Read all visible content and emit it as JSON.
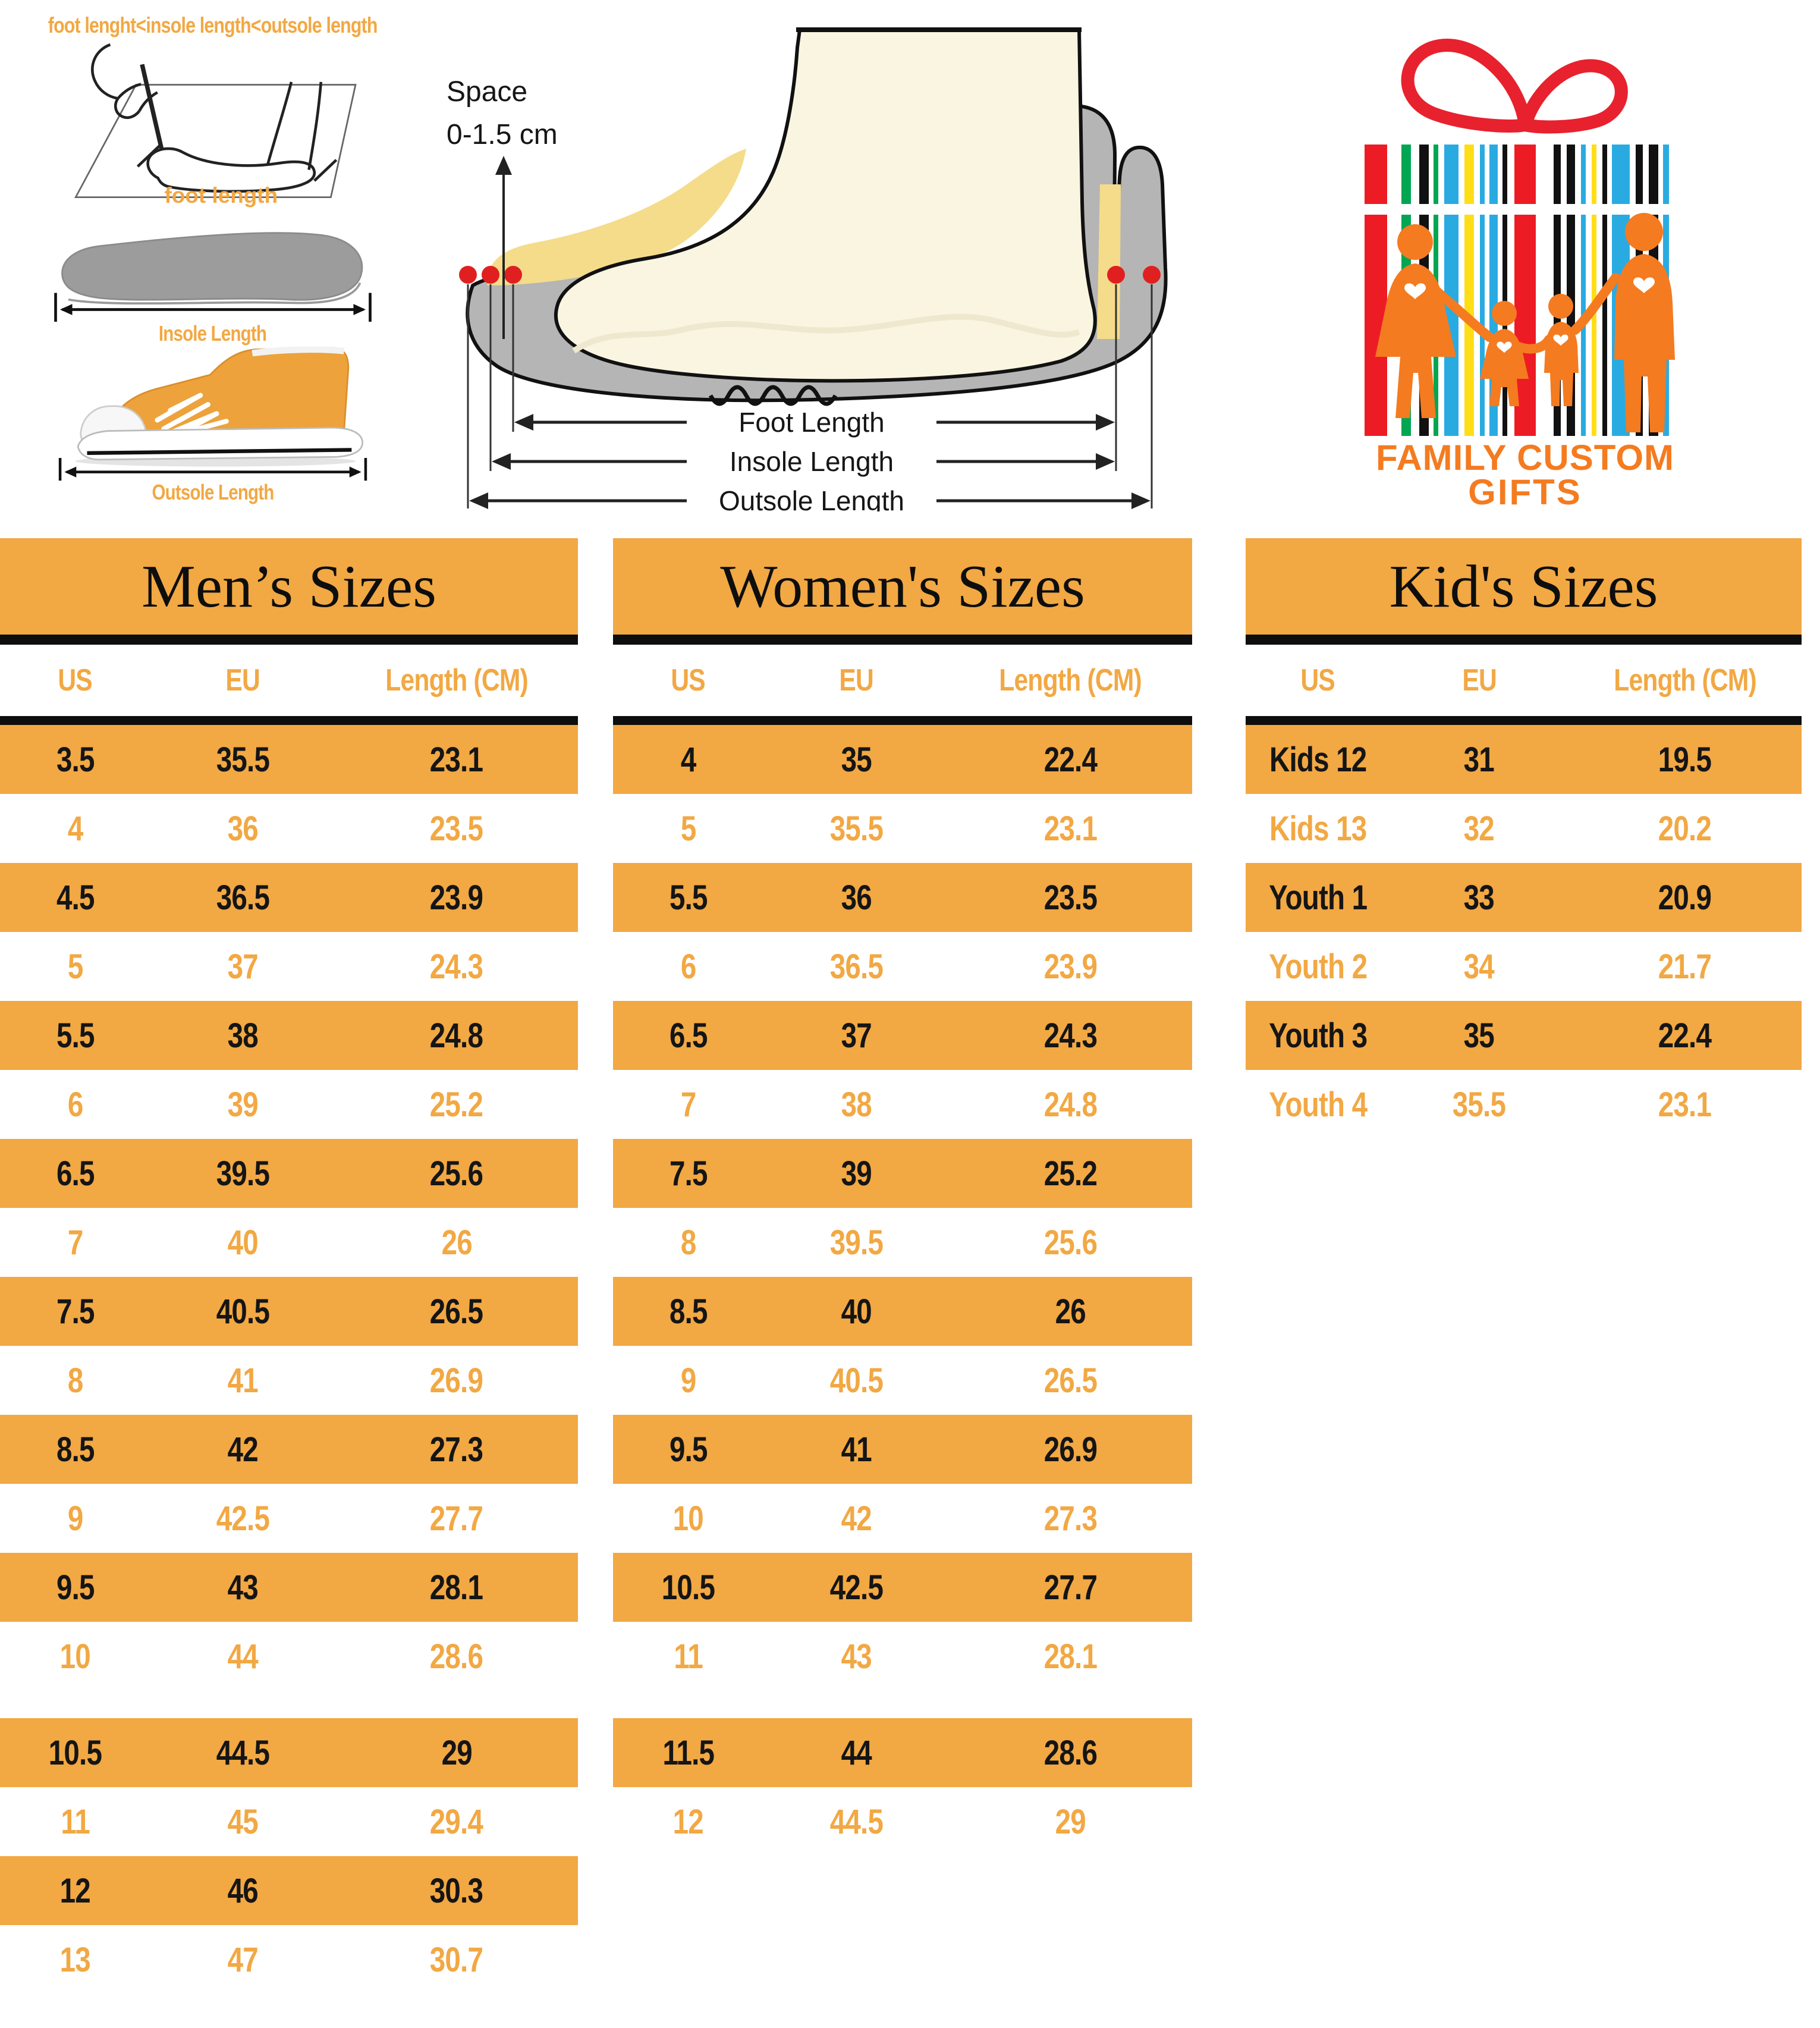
{
  "colors": {
    "table_orange": "#F2A843",
    "bar_black": "#0e0e0e",
    "logo_orange": "#F47B20",
    "logo_red": "#E8212E",
    "stripe_red": "#ED1C24",
    "stripe_green": "#00A651",
    "stripe_blue": "#29ABE2",
    "stripe_yellow": "#FFDE17",
    "insole_gray": "#9C9C9C",
    "shoe_gray": "#B5B5B5",
    "foot_cream": "#FAF5E1",
    "lining_yellow": "#F5DC8A"
  },
  "measure_box": {
    "title": "foot lenght<insole length<outsole length",
    "foot_label": "foot length",
    "insole_label": "Insole Length",
    "outsole_label": "Outsole Length"
  },
  "shoe_diagram": {
    "space_line1": "Space",
    "space_line2": "0-1.5 cm",
    "labels": [
      "Foot Length",
      "Insole Length",
      "Outsole Length"
    ]
  },
  "logo": {
    "line1": "FAMILY CUSTOM",
    "line2": "GIFTS"
  },
  "chart_data": [
    {
      "type": "table",
      "title": "Men’s Sizes",
      "columns": [
        "US",
        "EU",
        "Length (CM)"
      ],
      "rows": [
        [
          "3.5",
          "35.5",
          "23.1"
        ],
        [
          "4",
          "36",
          "23.5"
        ],
        [
          "4.5",
          "36.5",
          "23.9"
        ],
        [
          "5",
          "37",
          "24.3"
        ],
        [
          "5.5",
          "38",
          "24.8"
        ],
        [
          "6",
          "39",
          "25.2"
        ],
        [
          "6.5",
          "39.5",
          "25.6"
        ],
        [
          "7",
          "40",
          "26"
        ],
        [
          "7.5",
          "40.5",
          "26.5"
        ],
        [
          "8",
          "41",
          "26.9"
        ],
        [
          "8.5",
          "42",
          "27.3"
        ],
        [
          "9",
          "42.5",
          "27.7"
        ],
        [
          "9.5",
          "43",
          "28.1"
        ],
        [
          "10",
          "44",
          "28.6"
        ],
        [
          "10.5",
          "44.5",
          "29"
        ],
        [
          "11",
          "45",
          "29.4"
        ],
        [
          "12",
          "46",
          "30.3"
        ],
        [
          "13",
          "47",
          "30.7"
        ]
      ],
      "gap_before_row": 14
    },
    {
      "type": "table",
      "title": "Women's Sizes",
      "columns": [
        "US",
        "EU",
        "Length (CM)"
      ],
      "rows": [
        [
          "4",
          "35",
          "22.4"
        ],
        [
          "5",
          "35.5",
          "23.1"
        ],
        [
          "5.5",
          "36",
          "23.5"
        ],
        [
          "6",
          "36.5",
          "23.9"
        ],
        [
          "6.5",
          "37",
          "24.3"
        ],
        [
          "7",
          "38",
          "24.8"
        ],
        [
          "7.5",
          "39",
          "25.2"
        ],
        [
          "8",
          "39.5",
          "25.6"
        ],
        [
          "8.5",
          "40",
          "26"
        ],
        [
          "9",
          "40.5",
          "26.5"
        ],
        [
          "9.5",
          "41",
          "26.9"
        ],
        [
          "10",
          "42",
          "27.3"
        ],
        [
          "10.5",
          "42.5",
          "27.7"
        ],
        [
          "11",
          "43",
          "28.1"
        ],
        [
          "11.5",
          "44",
          "28.6"
        ],
        [
          "12",
          "44.5",
          "29"
        ]
      ],
      "gap_before_row": 14
    },
    {
      "type": "table",
      "title": "Kid's Sizes",
      "columns": [
        "US",
        "EU",
        "Length (CM)"
      ],
      "rows": [
        [
          "Kids 12",
          "31",
          "19.5"
        ],
        [
          "Kids 13",
          "32",
          "20.2"
        ],
        [
          "Youth 1",
          "33",
          "20.9"
        ],
        [
          "Youth 2",
          "34",
          "21.7"
        ],
        [
          "Youth 3",
          "35",
          "22.4"
        ],
        [
          "Youth 4",
          "35.5",
          "23.1"
        ]
      ],
      "gap_before_row": null
    }
  ]
}
